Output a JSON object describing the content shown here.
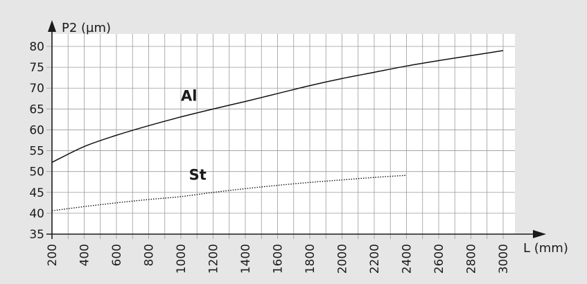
{
  "chart_data": {
    "type": "line",
    "y_axis_label": "P2 (µm)",
    "x_axis_label": "L  (mm)",
    "xlim": [
      200,
      3000
    ],
    "ylim": [
      35,
      80
    ],
    "x_ticks": [
      200,
      400,
      600,
      800,
      1000,
      1200,
      1400,
      1600,
      1800,
      2000,
      2200,
      2400,
      2600,
      2800,
      3000
    ],
    "y_ticks": [
      35,
      40,
      45,
      50,
      55,
      60,
      65,
      70,
      75,
      80
    ],
    "x_minor_step": 100,
    "grid": true,
    "series": [
      {
        "name": "Al",
        "style": "solid",
        "points": [
          [
            200,
            52.2
          ],
          [
            400,
            56.0
          ],
          [
            600,
            58.7
          ],
          [
            800,
            61.0
          ],
          [
            1000,
            63.1
          ],
          [
            1200,
            65.0
          ],
          [
            1400,
            66.8
          ],
          [
            1600,
            68.7
          ],
          [
            1800,
            70.6
          ],
          [
            2000,
            72.3
          ],
          [
            2200,
            73.8
          ],
          [
            2400,
            75.3
          ],
          [
            2600,
            76.6
          ],
          [
            2800,
            77.8
          ],
          [
            3000,
            79.0
          ]
        ]
      },
      {
        "name": "St",
        "style": "dotted",
        "points": [
          [
            200,
            40.6
          ],
          [
            400,
            41.6
          ],
          [
            600,
            42.5
          ],
          [
            800,
            43.3
          ],
          [
            1000,
            44.0
          ],
          [
            1200,
            45.0
          ],
          [
            1400,
            45.9
          ],
          [
            1600,
            46.7
          ],
          [
            1800,
            47.4
          ],
          [
            2000,
            48.0
          ],
          [
            2200,
            48.6
          ],
          [
            2400,
            49.1
          ]
        ]
      }
    ],
    "series_labels": [
      {
        "text": "Al",
        "x": 1000,
        "y": 67
      },
      {
        "text": "St",
        "x": 1050,
        "y": 48
      }
    ]
  }
}
